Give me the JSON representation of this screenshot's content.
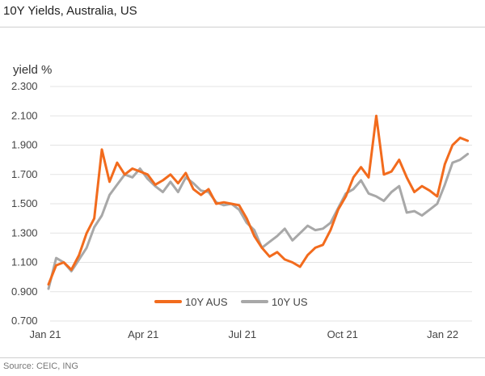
{
  "title": "10Y Yields, Australia, US",
  "source": "Source: CEIC, ING",
  "chart_data": {
    "type": "line",
    "ylabel": "yield %",
    "xlabel": "",
    "ylim": [
      0.7,
      2.3
    ],
    "yticks": [
      "0.700",
      "0.900",
      "1.100",
      "1.300",
      "1.500",
      "1.700",
      "1.900",
      "2.100",
      "2.300"
    ],
    "xticks": [
      "Jan 21",
      "Apr 21",
      "Jul 21",
      "Oct 21",
      "Jan 22"
    ],
    "grid": "horizontal",
    "legend": "bottom-center",
    "colors": {
      "aus": "#f26b1d",
      "us": "#a8a8a8"
    },
    "x": [
      "2021-01-04",
      "2021-01-11",
      "2021-01-18",
      "2021-01-25",
      "2021-02-01",
      "2021-02-08",
      "2021-02-15",
      "2021-02-22",
      "2021-03-01",
      "2021-03-08",
      "2021-03-15",
      "2021-03-22",
      "2021-03-29",
      "2021-04-05",
      "2021-04-12",
      "2021-04-19",
      "2021-04-26",
      "2021-05-03",
      "2021-05-10",
      "2021-05-17",
      "2021-05-24",
      "2021-05-31",
      "2021-06-07",
      "2021-06-14",
      "2021-06-21",
      "2021-06-28",
      "2021-07-05",
      "2021-07-12",
      "2021-07-19",
      "2021-07-26",
      "2021-08-02",
      "2021-08-09",
      "2021-08-16",
      "2021-08-23",
      "2021-08-30",
      "2021-09-06",
      "2021-09-13",
      "2021-09-20",
      "2021-09-27",
      "2021-10-04",
      "2021-10-11",
      "2021-10-18",
      "2021-10-25",
      "2021-11-01",
      "2021-11-08",
      "2021-11-15",
      "2021-11-22",
      "2021-11-29",
      "2021-12-06",
      "2021-12-13",
      "2021-12-20",
      "2021-12-27",
      "2022-01-03",
      "2022-01-10",
      "2022-01-17",
      "2022-01-24"
    ],
    "series": [
      {
        "name": "10Y AUS",
        "values": [
          0.95,
          1.08,
          1.1,
          1.05,
          1.15,
          1.3,
          1.4,
          1.87,
          1.65,
          1.78,
          1.7,
          1.74,
          1.72,
          1.7,
          1.63,
          1.66,
          1.7,
          1.64,
          1.71,
          1.6,
          1.56,
          1.6,
          1.5,
          1.51,
          1.5,
          1.49,
          1.4,
          1.28,
          1.2,
          1.14,
          1.17,
          1.12,
          1.1,
          1.07,
          1.15,
          1.2,
          1.22,
          1.32,
          1.46,
          1.55,
          1.68,
          1.75,
          1.68,
          2.1,
          1.7,
          1.72,
          1.8,
          1.68,
          1.58,
          1.62,
          1.59,
          1.55,
          1.77,
          1.9,
          1.95,
          1.93
        ]
      },
      {
        "name": "10Y US",
        "values": [
          0.92,
          1.13,
          1.1,
          1.04,
          1.12,
          1.2,
          1.34,
          1.42,
          1.56,
          1.63,
          1.7,
          1.68,
          1.74,
          1.67,
          1.62,
          1.58,
          1.65,
          1.58,
          1.68,
          1.64,
          1.59,
          1.58,
          1.51,
          1.49,
          1.5,
          1.46,
          1.37,
          1.32,
          1.2,
          1.24,
          1.28,
          1.33,
          1.25,
          1.3,
          1.35,
          1.32,
          1.33,
          1.37,
          1.47,
          1.57,
          1.6,
          1.66,
          1.57,
          1.55,
          1.52,
          1.58,
          1.62,
          1.44,
          1.45,
          1.42,
          1.46,
          1.5,
          1.63,
          1.78,
          1.8,
          1.84
        ]
      }
    ]
  }
}
